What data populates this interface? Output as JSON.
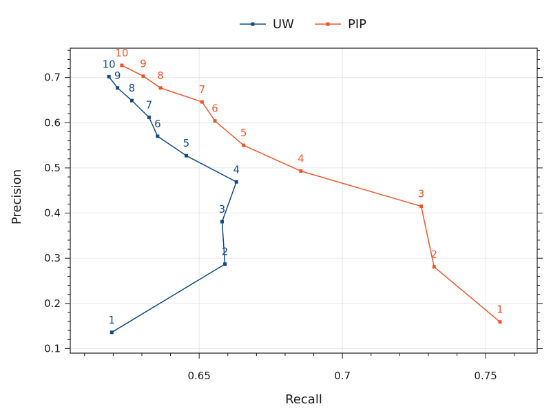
{
  "chart_data": {
    "type": "line",
    "xlabel": "Recall",
    "ylabel": "Precision",
    "xlim": [
      0.605,
      0.768
    ],
    "ylim": [
      0.09,
      0.765
    ],
    "x_ticks": [
      0.65,
      0.7,
      0.75
    ],
    "x_tick_labels": [
      "0.65",
      "0.7",
      "0.75"
    ],
    "y_ticks": [
      0.1,
      0.2,
      0.3,
      0.4,
      0.5,
      0.6,
      0.7
    ],
    "y_tick_labels": [
      "0.1",
      "0.2",
      "0.3",
      "0.4",
      "0.5",
      "0.6",
      "0.7"
    ],
    "grid": true,
    "legend_position": "top-center",
    "series": [
      {
        "name": "UW",
        "color": "#0f4a86",
        "points": [
          {
            "label": "1",
            "recall": 0.6195,
            "precision": 0.136
          },
          {
            "label": "2",
            "recall": 0.659,
            "precision": 0.287
          },
          {
            "label": "3",
            "recall": 0.658,
            "precision": 0.381
          },
          {
            "label": "4",
            "recall": 0.663,
            "precision": 0.469
          },
          {
            "label": "5",
            "recall": 0.6455,
            "precision": 0.527
          },
          {
            "label": "6",
            "recall": 0.6355,
            "precision": 0.57
          },
          {
            "label": "7",
            "recall": 0.6325,
            "precision": 0.612
          },
          {
            "label": "8",
            "recall": 0.6265,
            "precision": 0.649
          },
          {
            "label": "9",
            "recall": 0.6215,
            "precision": 0.677
          },
          {
            "label": "10",
            "recall": 0.6185,
            "precision": 0.702
          }
        ]
      },
      {
        "name": "PIP",
        "color": "#f0542a",
        "points": [
          {
            "label": "1",
            "recall": 0.755,
            "precision": 0.159
          },
          {
            "label": "2",
            "recall": 0.732,
            "precision": 0.281
          },
          {
            "label": "3",
            "recall": 0.7275,
            "precision": 0.415
          },
          {
            "label": "4",
            "recall": 0.6855,
            "precision": 0.493
          },
          {
            "label": "5",
            "recall": 0.6655,
            "precision": 0.55
          },
          {
            "label": "6",
            "recall": 0.6555,
            "precision": 0.604
          },
          {
            "label": "7",
            "recall": 0.651,
            "precision": 0.646
          },
          {
            "label": "8",
            "recall": 0.6365,
            "precision": 0.677
          },
          {
            "label": "9",
            "recall": 0.6305,
            "precision": 0.703
          },
          {
            "label": "10",
            "recall": 0.623,
            "precision": 0.727
          }
        ]
      }
    ]
  }
}
